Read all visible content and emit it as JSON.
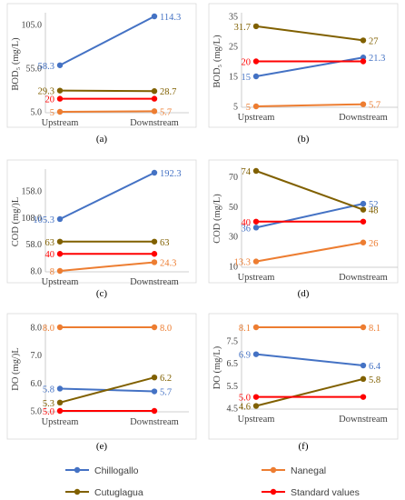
{
  "figure": {
    "legend": [
      {
        "key": "chillogallo",
        "label": "Chillogallo",
        "color": "#4472c4"
      },
      {
        "key": "nanegal",
        "label": "Nanegal",
        "color": "#ed7d31"
      },
      {
        "key": "cutuglagua",
        "label": "Cutuglagua",
        "color": "#806000"
      },
      {
        "key": "standard",
        "label": "Standard values",
        "color": "#ff0000"
      }
    ]
  },
  "chart_data": [
    {
      "type": "line",
      "letter": "(a)",
      "ylabel": "BOD₅ (mg/L)",
      "ylim": [
        5.0,
        114.3
      ],
      "yticks": [
        "5.0",
        "55.0",
        "105.0"
      ],
      "ytick_values": [
        5,
        55,
        105
      ],
      "categories": [
        "Upstream",
        "Downstream"
      ],
      "series": [
        {
          "name": "Chillogallo",
          "values": [
            58.3,
            114.3
          ],
          "labels": [
            "58.3",
            "114.3"
          ],
          "color": "#4472c4"
        },
        {
          "name": "Nanegal",
          "values": [
            5,
            5.7
          ],
          "labels": [
            "5",
            "5.7"
          ],
          "color": "#ed7d31"
        },
        {
          "name": "Cutuglagua",
          "values": [
            29.3,
            28.7
          ],
          "labels": [
            "29.3",
            "28.7"
          ],
          "color": "#806000"
        },
        {
          "name": "Standard values",
          "values": [
            20,
            20
          ],
          "labels": [
            "20",
            ""
          ],
          "color": "#ff0000"
        }
      ]
    },
    {
      "type": "line",
      "letter": "(b)",
      "ylabel": "BOD₅ (mg/L)",
      "ylim": [
        5,
        35
      ],
      "yticks": [
        "5",
        "15",
        "25",
        "35"
      ],
      "ytick_values": [
        5,
        15,
        25,
        35
      ],
      "categories": [
        "Upstream",
        "Downstream"
      ],
      "series": [
        {
          "name": "Chillogallo",
          "values": [
            15,
            21.3
          ],
          "labels": [
            "15",
            "21.3"
          ],
          "color": "#4472c4"
        },
        {
          "name": "Nanegal",
          "values": [
            5,
            5.7
          ],
          "labels": [
            "5",
            "5.7"
          ],
          "color": "#ed7d31"
        },
        {
          "name": "Cutuglagua",
          "values": [
            31.7,
            27
          ],
          "labels": [
            "31.7",
            "27"
          ],
          "color": "#806000"
        },
        {
          "name": "Standard values",
          "values": [
            20,
            20
          ],
          "labels": [
            "20",
            ""
          ],
          "color": "#ff0000"
        }
      ]
    },
    {
      "type": "line",
      "letter": "(c)",
      "ylabel": "COD (mg/)L",
      "ylim": [
        8.0,
        192.3
      ],
      "yticks": [
        "8.0",
        "58.0",
        "108.0",
        "158.0"
      ],
      "ytick_values": [
        8,
        58,
        108,
        158
      ],
      "categories": [
        "Upstream",
        "Downstream"
      ],
      "series": [
        {
          "name": "Chillogallo",
          "values": [
            105.3,
            192.3
          ],
          "labels": [
            "105.3",
            "192.3"
          ],
          "color": "#4472c4"
        },
        {
          "name": "Nanegal",
          "values": [
            8,
            24.3
          ],
          "labels": [
            "8",
            "24.3"
          ],
          "color": "#ed7d31"
        },
        {
          "name": "Cutuglagua",
          "values": [
            63,
            63
          ],
          "labels": [
            "63",
            "63"
          ],
          "color": "#806000"
        },
        {
          "name": "Standard values",
          "values": [
            40,
            40
          ],
          "labels": [
            "40",
            ""
          ],
          "color": "#ff0000"
        }
      ]
    },
    {
      "type": "line",
      "letter": "(d)",
      "ylabel": "COD (mg/L)",
      "ylim": [
        10,
        74
      ],
      "yticks": [
        "10",
        "30",
        "50",
        "70"
      ],
      "ytick_values": [
        10,
        30,
        50,
        70
      ],
      "categories": [
        "Upstream",
        "Downstream"
      ],
      "series": [
        {
          "name": "Chillogallo",
          "values": [
            36,
            52
          ],
          "labels": [
            "36",
            "52"
          ],
          "color": "#4472c4"
        },
        {
          "name": "Nanegal",
          "values": [
            13.3,
            26
          ],
          "labels": [
            "13.3",
            "26"
          ],
          "color": "#ed7d31"
        },
        {
          "name": "Cutuglagua",
          "values": [
            74,
            48
          ],
          "labels": [
            "74",
            "48"
          ],
          "color": "#806000"
        },
        {
          "name": "Standard values",
          "values": [
            40,
            40
          ],
          "labels": [
            "40",
            ""
          ],
          "color": "#ff0000"
        }
      ]
    },
    {
      "type": "line",
      "letter": "(e)",
      "ylabel": "DO (mg/)L",
      "ylim": [
        5.0,
        8.0
      ],
      "yticks": [
        "5.0",
        "6.0",
        "7.0",
        "8.0"
      ],
      "ytick_values": [
        5,
        6,
        7,
        8
      ],
      "categories": [
        "Upstream",
        "Downstream"
      ],
      "series": [
        {
          "name": "Chillogallo",
          "values": [
            5.8,
            5.7
          ],
          "labels": [
            "5.8",
            "5.7"
          ],
          "color": "#4472c4"
        },
        {
          "name": "Nanegal",
          "values": [
            8.0,
            8.0
          ],
          "labels": [
            "8.0",
            "8.0"
          ],
          "color": "#ed7d31"
        },
        {
          "name": "Cutuglagua",
          "values": [
            5.3,
            6.2
          ],
          "labels": [
            "5.3",
            "6.2"
          ],
          "color": "#806000"
        },
        {
          "name": "Standard values",
          "values": [
            5.0,
            5.0
          ],
          "labels": [
            "5.0",
            ""
          ],
          "color": "#ff0000"
        }
      ]
    },
    {
      "type": "line",
      "letter": "(f)",
      "ylabel": "DO (mg/L)",
      "ylim": [
        4.5,
        8.1
      ],
      "yticks": [
        "4.5",
        "5.5",
        "6.5",
        "7.5"
      ],
      "ytick_values": [
        4.5,
        5.5,
        6.5,
        7.5
      ],
      "categories": [
        "Upstream",
        "Downstream"
      ],
      "series": [
        {
          "name": "Chillogallo",
          "values": [
            6.9,
            6.4
          ],
          "labels": [
            "6.9",
            "6.4"
          ],
          "color": "#4472c4"
        },
        {
          "name": "Nanegal",
          "values": [
            8.1,
            8.1
          ],
          "labels": [
            "8.1",
            "8.1"
          ],
          "color": "#ed7d31"
        },
        {
          "name": "Cutuglagua",
          "values": [
            4.6,
            5.8
          ],
          "labels": [
            "4.6",
            "5.8"
          ],
          "color": "#806000"
        },
        {
          "name": "Standard values",
          "values": [
            5.0,
            5.0
          ],
          "labels": [
            "5.0",
            ""
          ],
          "color": "#ff0000"
        }
      ]
    }
  ]
}
